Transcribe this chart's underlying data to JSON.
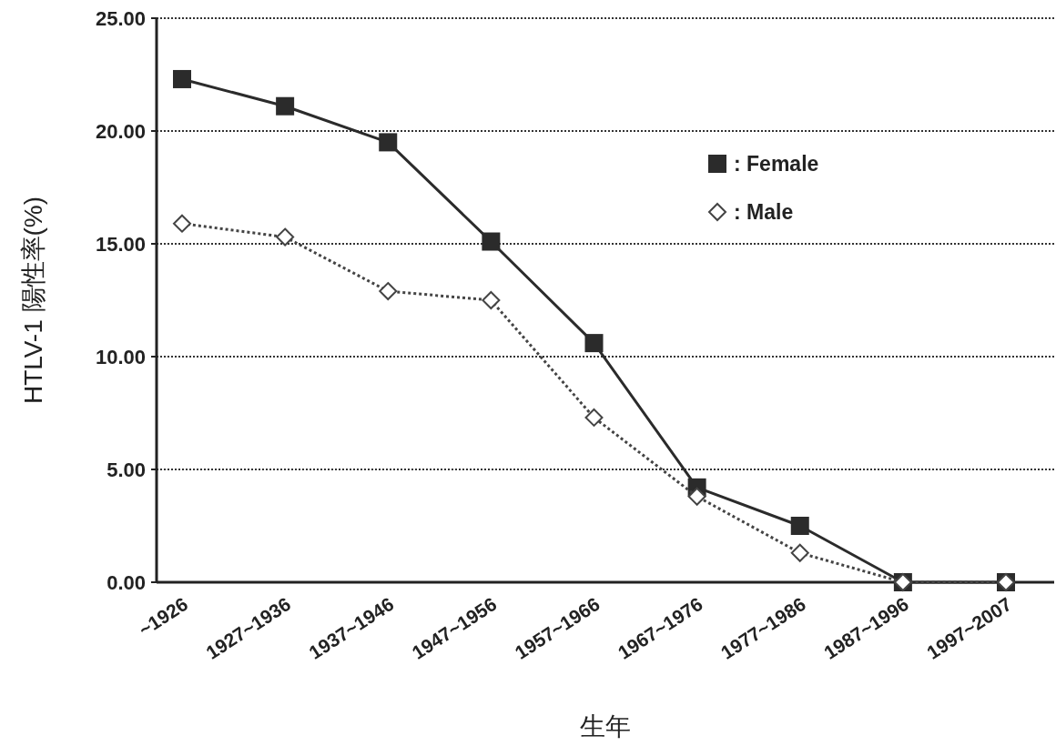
{
  "chart_data": {
    "type": "line",
    "xlabel": "生年",
    "ylabel": "HTLV-1 陽性率(%)",
    "categories": [
      "~1926",
      "1927~1936",
      "1937~1946",
      "1947~1956",
      "1957~1966",
      "1967~1976",
      "1977~1986",
      "1987~1996",
      "1997~2007"
    ],
    "series": [
      {
        "name": ": Female",
        "color": "#2b2b2b",
        "marker": "square",
        "line_style": "solid",
        "values": [
          22.3,
          21.1,
          19.5,
          15.1,
          10.6,
          4.2,
          2.5,
          0,
          0
        ]
      },
      {
        "name": ": Male",
        "color": "#444444",
        "marker": "diamond",
        "line_style": "dotted",
        "values": [
          15.9,
          15.3,
          12.9,
          12.5,
          7.3,
          3.8,
          1.3,
          0,
          0
        ]
      }
    ],
    "ylim": [
      0,
      25
    ],
    "yticks": [
      {
        "value": 0,
        "label": "0.00"
      },
      {
        "value": 5,
        "label": "5.00"
      },
      {
        "value": 10,
        "label": "10.00"
      },
      {
        "value": 15,
        "label": "15.00"
      },
      {
        "value": 20,
        "label": "20.00"
      },
      {
        "value": 25,
        "label": "25.00"
      }
    ],
    "grid": "y",
    "legend": "top right"
  }
}
